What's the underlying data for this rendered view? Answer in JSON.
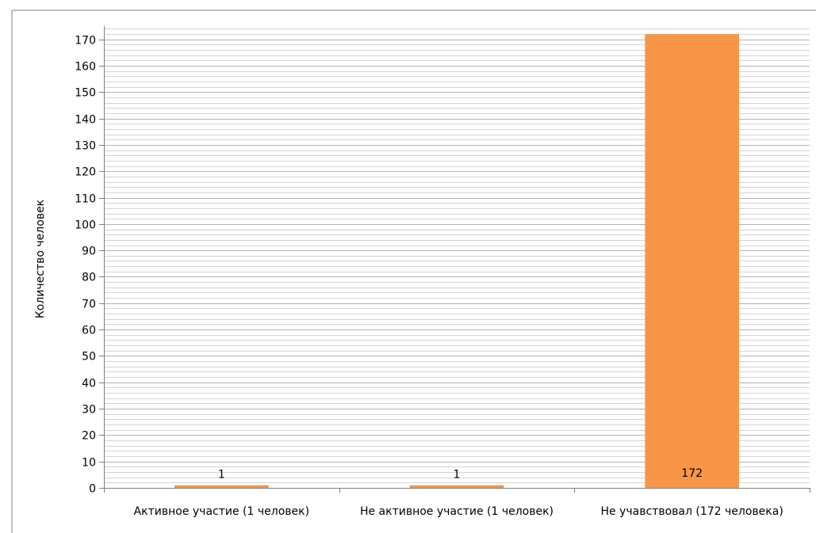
{
  "chart_data": {
    "type": "bar",
    "title": "",
    "xlabel": "",
    "ylabel": "Количество человек",
    "categories": [
      "Активное участие (1 человек)",
      "Не активное участие (1 человек)",
      "Не учавствовал (172 человека)"
    ],
    "values": [
      1,
      1,
      172
    ],
    "data_labels": [
      "1",
      "1",
      "172"
    ],
    "ylim": [
      0,
      175
    ],
    "major_ticks": [
      0,
      10,
      20,
      30,
      40,
      50,
      60,
      70,
      80,
      90,
      100,
      110,
      120,
      130,
      140,
      150,
      160,
      170
    ],
    "grid": "major and minor horizontal",
    "legend": "none",
    "bar_color": "#f79646",
    "colors": {
      "bar": "#f79646",
      "grid": "#c8c8c8",
      "axis": "#808080",
      "text": "#000000"
    }
  }
}
